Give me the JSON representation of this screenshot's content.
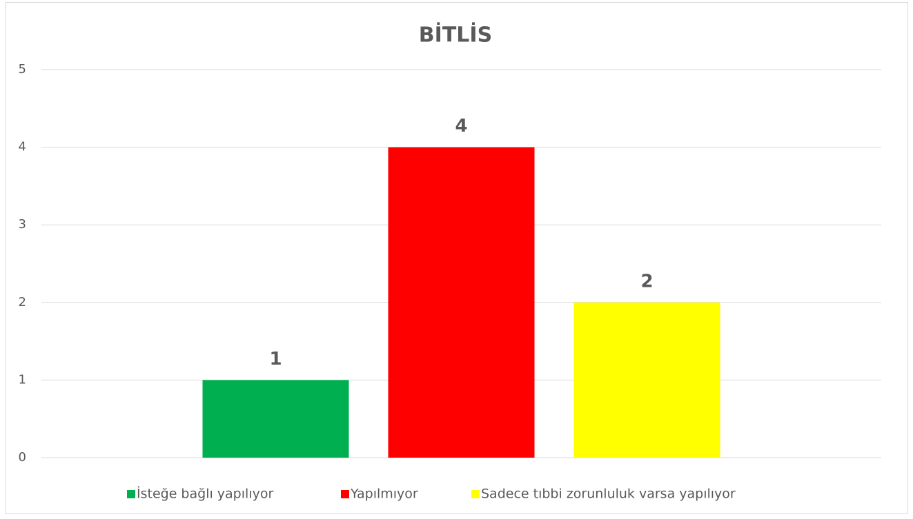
{
  "chart_data": {
    "type": "bar",
    "title": "BİTLİS",
    "categories": [
      null
    ],
    "series": [
      {
        "name": "İsteğe bağlı yapılıyor",
        "color": "#00b050",
        "values": [
          1
        ]
      },
      {
        "name": "Yapılmıyor",
        "color": "#ff0000",
        "values": [
          4
        ]
      },
      {
        "name": "Sadece tıbbi zorunluluk varsa yapılıyor",
        "color": "#ffff00",
        "values": [
          2
        ]
      }
    ],
    "ylim": [
      0,
      5
    ],
    "yticks": [
      0,
      1,
      2,
      3,
      4,
      5
    ],
    "grid": true,
    "legend": "bottom",
    "data_labels": true
  }
}
